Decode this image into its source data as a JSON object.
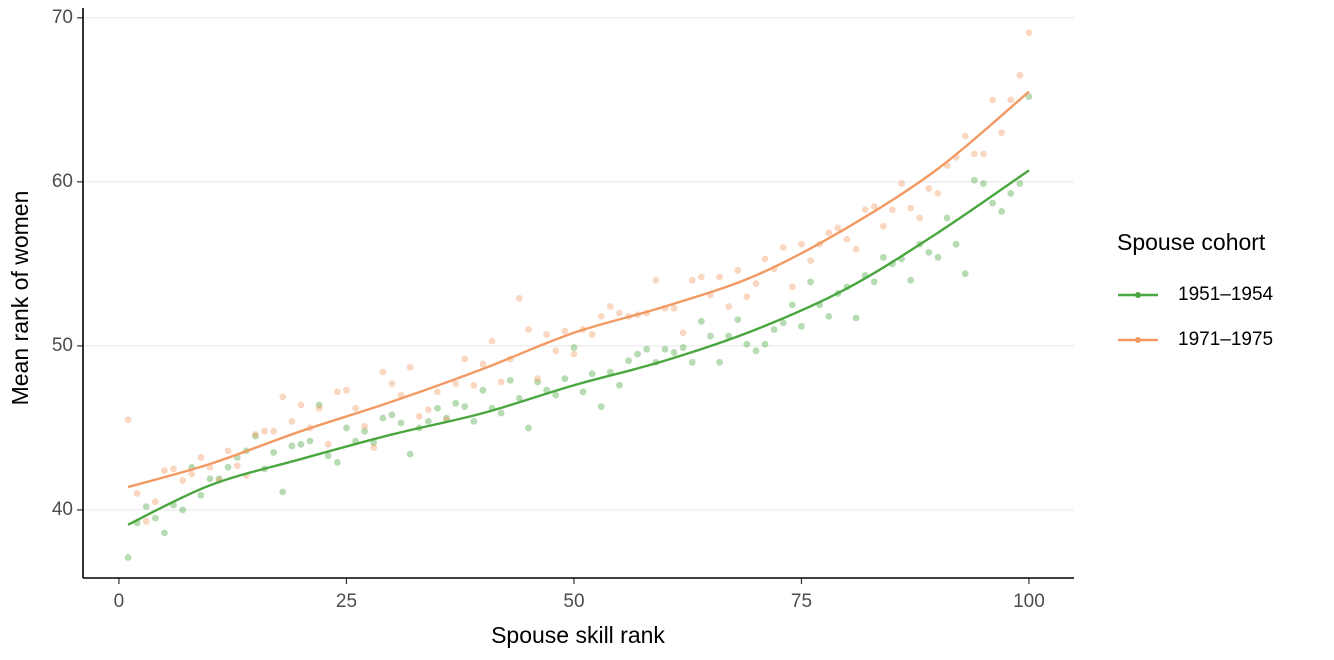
{
  "chart_data": {
    "type": "scatter",
    "x_label": "Spouse skill rank",
    "y_label": "Mean rank of women",
    "legend_title": "Spouse cohort",
    "legend": "right",
    "grid": "y",
    "xlim": [
      -3.95,
      104.95
    ],
    "ylim": [
      35.85,
      70.6
    ],
    "xticks": [
      0,
      25,
      50,
      75,
      100
    ],
    "yticks": [
      40,
      50,
      60,
      70
    ],
    "x": [
      1,
      2,
      3,
      4,
      5,
      6,
      7,
      8,
      9,
      10,
      11,
      12,
      13,
      14,
      15,
      16,
      17,
      18,
      19,
      20,
      21,
      22,
      23,
      24,
      25,
      26,
      27,
      28,
      29,
      30,
      31,
      32,
      33,
      34,
      35,
      36,
      37,
      38,
      39,
      40,
      41,
      42,
      43,
      44,
      45,
      46,
      47,
      48,
      49,
      50,
      51,
      52,
      53,
      54,
      55,
      56,
      57,
      58,
      59,
      60,
      61,
      62,
      63,
      64,
      65,
      66,
      67,
      68,
      69,
      70,
      71,
      72,
      73,
      74,
      75,
      76,
      77,
      78,
      79,
      80,
      81,
      82,
      83,
      84,
      85,
      86,
      87,
      88,
      89,
      90,
      91,
      92,
      93,
      94,
      95,
      96,
      97,
      98,
      99,
      100
    ],
    "smooth_x": [
      1,
      10,
      20,
      30,
      40,
      50,
      60,
      70,
      80,
      90,
      100
    ],
    "series": [
      {
        "name": "1951–1954",
        "color": "#4aa63f",
        "values": [
          37.1,
          39.2,
          40.2,
          39.5,
          38.6,
          40.3,
          40.0,
          42.6,
          40.9,
          41.9,
          41.9,
          42.6,
          43.2,
          43.6,
          44.5,
          42.5,
          43.5,
          41.1,
          43.9,
          44.0,
          44.2,
          46.4,
          43.3,
          42.9,
          45.0,
          44.2,
          44.8,
          44.1,
          45.6,
          45.8,
          45.3,
          43.4,
          45.0,
          45.4,
          46.2,
          45.6,
          46.5,
          46.3,
          45.4,
          47.3,
          46.2,
          45.9,
          47.9,
          46.8,
          45.0,
          47.8,
          47.3,
          47.0,
          48.0,
          49.9,
          47.2,
          48.3,
          46.3,
          48.4,
          47.6,
          49.1,
          49.5,
          49.8,
          49.0,
          49.8,
          49.6,
          49.9,
          49.0,
          51.5,
          50.6,
          49.0,
          50.6,
          51.6,
          50.1,
          49.7,
          50.1,
          51.0,
          51.4,
          52.5,
          51.2,
          53.9,
          52.5,
          51.8,
          53.2,
          53.6,
          51.7,
          54.3,
          53.9,
          55.4,
          55.0,
          55.3,
          54.0,
          56.2,
          55.7,
          55.4,
          57.8,
          56.2,
          54.4,
          60.1,
          59.9,
          58.7,
          58.2,
          59.3,
          59.9,
          65.2
        ],
        "smooth": [
          39.1,
          41.5,
          43.1,
          44.6,
          45.9,
          47.6,
          49.1,
          51.0,
          53.5,
          56.9,
          60.7
        ]
      },
      {
        "name": "1971–1975",
        "color": "#f29a63",
        "values": [
          45.5,
          41.0,
          39.3,
          40.5,
          42.4,
          42.5,
          41.8,
          42.2,
          43.2,
          42.6,
          41.8,
          43.6,
          42.7,
          42.1,
          44.6,
          44.8,
          44.8,
          46.9,
          45.4,
          46.4,
          45.0,
          46.2,
          44.0,
          47.2,
          47.3,
          46.2,
          45.1,
          43.8,
          48.4,
          47.7,
          47.0,
          48.7,
          45.7,
          46.1,
          47.2,
          45.5,
          47.7,
          49.2,
          47.6,
          48.9,
          50.3,
          47.8,
          49.2,
          52.9,
          51.0,
          48.0,
          50.7,
          49.7,
          50.9,
          49.5,
          51.0,
          50.7,
          51.8,
          52.4,
          52.0,
          51.8,
          51.9,
          52.0,
          54.0,
          52.3,
          52.3,
          50.8,
          54.0,
          54.2,
          53.1,
          54.2,
          52.4,
          54.6,
          53.0,
          53.8,
          55.3,
          54.7,
          56.0,
          53.6,
          56.2,
          55.2,
          56.2,
          56.9,
          57.2,
          56.5,
          55.9,
          58.3,
          58.5,
          57.3,
          58.3,
          59.9,
          58.4,
          57.8,
          59.6,
          59.3,
          61.0,
          61.5,
          62.8,
          61.7,
          61.7,
          65.0,
          63.0,
          65.0,
          66.5,
          69.1
        ],
        "smooth": [
          41.4,
          42.8,
          44.8,
          46.6,
          48.6,
          50.8,
          52.4,
          54.3,
          57.2,
          60.8,
          65.5
        ]
      }
    ]
  }
}
